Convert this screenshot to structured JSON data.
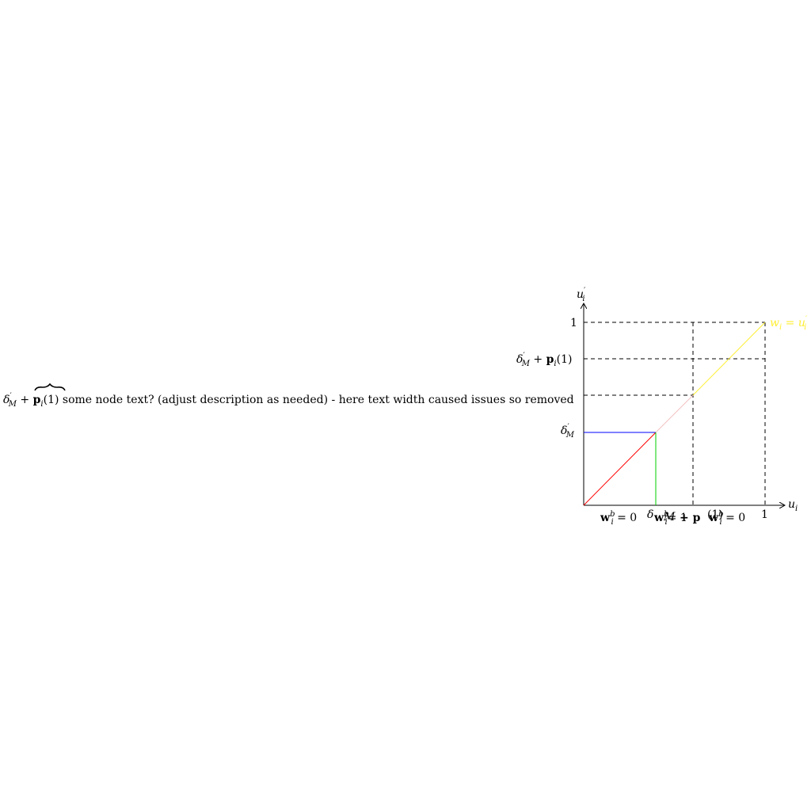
{
  "axes": {
    "x_label": "u",
    "x_sub": "i",
    "y_label": "u",
    "y_prime": "′",
    "y_sub": "i"
  },
  "y_ticks": {
    "one": "1",
    "delta_plus_p": {
      "delta": "δ",
      "prime": "′",
      "sub": "M",
      "plus": " + ",
      "p": "p",
      "p_sub": "i",
      "arg": "(1)"
    },
    "delta": {
      "delta": "δ",
      "prime": "′",
      "sub": "M"
    }
  },
  "x_ticks": {
    "one": "1"
  },
  "long_label": {
    "delta": "δ",
    "prime": "′",
    "sub": "M",
    "plus": " + ",
    "p": "p",
    "p_sub": "i",
    "arg": "(1)",
    "rest": " some node text? (adjust description as needed) - here text width caused issues so removed"
  },
  "bottom_labels": {
    "left": {
      "w": "w",
      "sub": "i",
      "sup": "b",
      "eq": " = 0"
    },
    "middle_a": "δ",
    "middle_b": {
      "w": "w",
      "sub": "i",
      "sup": "b",
      "eq": "= 1"
    },
    "middle_c": "M",
    "middle_d": " + p",
    "middle_e": "(1)",
    "right": {
      "w": "w",
      "sub": "i",
      "sup": "b",
      "eq": " = 0"
    }
  },
  "yellow_label": {
    "w": "w",
    "sub": "i",
    "eq": " = u",
    "prime": "′",
    "sub2": "i"
  },
  "colors": {
    "red": "#ff0000",
    "blue": "#0000ff",
    "green": "#00cc00",
    "pink": "#f4c2c2",
    "yellow": "#ffee33",
    "axis": "#000000"
  }
}
